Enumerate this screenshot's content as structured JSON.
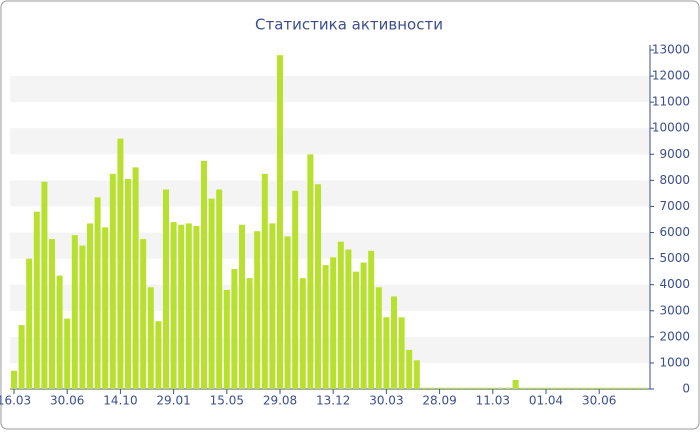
{
  "chart_data": {
    "type": "bar",
    "title": "Статистика активности",
    "categories": [
      "16.03",
      null,
      null,
      null,
      null,
      null,
      null,
      "30.06",
      null,
      null,
      null,
      null,
      null,
      null,
      "14.10",
      null,
      null,
      null,
      null,
      null,
      null,
      "29.01",
      null,
      null,
      null,
      null,
      null,
      null,
      "15.05",
      null,
      null,
      null,
      null,
      null,
      null,
      "29.08",
      null,
      null,
      null,
      null,
      null,
      null,
      "13.12",
      null,
      null,
      null,
      null,
      null,
      null,
      "30.03",
      null,
      null,
      null,
      null,
      null,
      null,
      "28.09",
      null,
      null,
      null,
      null,
      null,
      null,
      "11.03",
      null,
      null,
      null,
      null,
      null,
      null,
      "01.04",
      null,
      null,
      null,
      null,
      null,
      null,
      "30.06",
      null,
      null,
      null,
      null,
      null,
      null
    ],
    "values": [
      700,
      2450,
      5000,
      6800,
      7950,
      5750,
      4350,
      2700,
      5900,
      5500,
      6350,
      7350,
      6200,
      8250,
      9600,
      8050,
      8500,
      5750,
      3900,
      2600,
      7650,
      6400,
      6300,
      6350,
      6250,
      8750,
      7300,
      7650,
      3800,
      4600,
      6300,
      4250,
      6050,
      8250,
      6350,
      12800,
      5850,
      7600,
      4250,
      9000,
      7850,
      4750,
      5050,
      5650,
      5350,
      4500,
      4850,
      5300,
      3900,
      2750,
      3550,
      2750,
      1500,
      1100,
      50,
      50,
      50,
      50,
      50,
      50,
      50,
      50,
      50,
      50,
      50,
      50,
      350,
      50,
      50,
      50,
      50,
      50,
      50,
      50,
      50,
      50,
      50,
      50,
      50,
      50,
      50,
      50,
      50,
      50
    ],
    "color": "#b8e02e",
    "ylim": [
      0,
      13000
    ],
    "yticks": [
      0,
      1000,
      2000,
      3000,
      4000,
      5000,
      6000,
      7000,
      8000,
      9000,
      10000,
      11000,
      12000,
      13000
    ],
    "grid": true
  }
}
